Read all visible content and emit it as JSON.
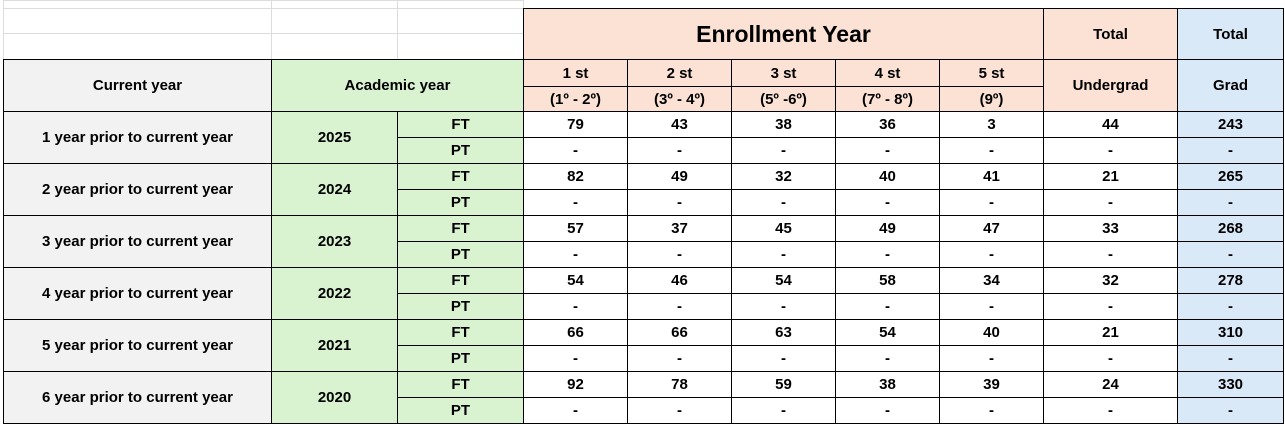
{
  "header": {
    "title": "Enrollment Year",
    "current_year": "Current year",
    "academic_year": "Academic year",
    "columns": [
      {
        "top": "1 st",
        "bottom": "(1º - 2º)"
      },
      {
        "top": "2 st",
        "bottom": "(3º - 4º)"
      },
      {
        "top": "3 st",
        "bottom": "(5º -6º)"
      },
      {
        "top": "4 st",
        "bottom": "(7º - 8º)"
      },
      {
        "top": "5 st",
        "bottom": "(9º)"
      }
    ],
    "total_undergrad": {
      "top": "Total",
      "bottom": "Undergrad"
    },
    "total_grad": {
      "top": "Total",
      "bottom": "Grad"
    }
  },
  "rows": [
    {
      "label": "1 year prior to current year",
      "year": 2025,
      "ft": {
        "type": "FT",
        "values": [
          79,
          43,
          38,
          36,
          3
        ],
        "undergrad": 44,
        "grad": 243
      },
      "pt": {
        "type": "PT",
        "values": [
          "-",
          "-",
          "-",
          "-",
          "-"
        ],
        "undergrad": "-",
        "grad": "-"
      }
    },
    {
      "label": "2 year prior to current year",
      "year": 2024,
      "ft": {
        "type": "FT",
        "values": [
          82,
          49,
          32,
          40,
          41
        ],
        "undergrad": 21,
        "grad": 265
      },
      "pt": {
        "type": "PT",
        "values": [
          "-",
          "-",
          "-",
          "-",
          "-"
        ],
        "undergrad": "-",
        "grad": "-"
      }
    },
    {
      "label": "3 year prior to current year",
      "year": 2023,
      "ft": {
        "type": "FT",
        "values": [
          57,
          37,
          45,
          49,
          47
        ],
        "undergrad": 33,
        "grad": 268
      },
      "pt": {
        "type": "PT",
        "values": [
          "-",
          "-",
          "-",
          "-",
          "-"
        ],
        "undergrad": "-",
        "grad": "-"
      }
    },
    {
      "label": "4 year prior to current year",
      "year": 2022,
      "ft": {
        "type": "FT",
        "values": [
          54,
          46,
          54,
          58,
          34
        ],
        "undergrad": 32,
        "grad": 278
      },
      "pt": {
        "type": "PT",
        "values": [
          "-",
          "-",
          "-",
          "-",
          "-"
        ],
        "undergrad": "-",
        "grad": "-"
      }
    },
    {
      "label": "5 year prior to current year",
      "year": 2021,
      "ft": {
        "type": "FT",
        "values": [
          66,
          66,
          63,
          54,
          40
        ],
        "undergrad": 21,
        "grad": 310
      },
      "pt": {
        "type": "PT",
        "values": [
          "-",
          "-",
          "-",
          "-",
          "-"
        ],
        "undergrad": "-",
        "grad": "-"
      }
    },
    {
      "label": "6 year prior to current year",
      "year": 2020,
      "ft": {
        "type": "FT",
        "values": [
          92,
          78,
          59,
          38,
          39
        ],
        "undergrad": 24,
        "grad": 330
      },
      "pt": {
        "type": "PT",
        "values": [
          "-",
          "-",
          "-",
          "-",
          "-"
        ],
        "undergrad": "-",
        "grad": "-"
      }
    }
  ]
}
